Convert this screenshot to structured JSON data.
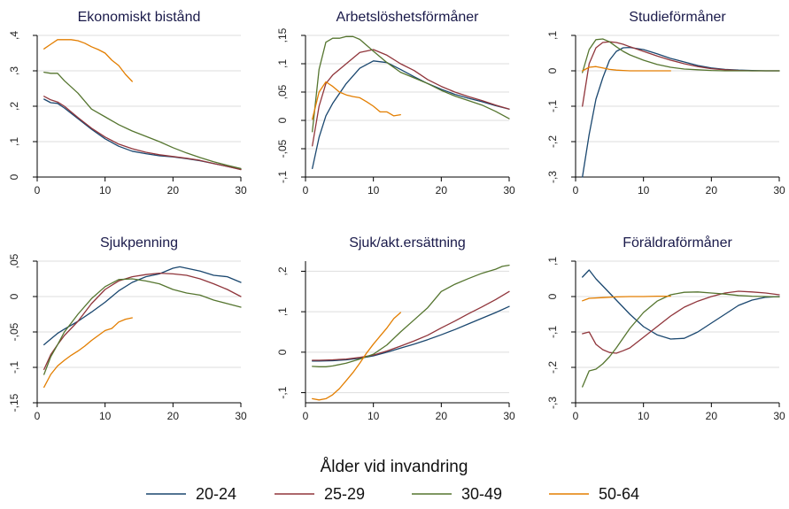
{
  "colors": {
    "20-24": "#1a476f",
    "25-29": "#90353b",
    "30-49": "#55752f",
    "50-64": "#e37e00"
  },
  "legend": {
    "title": "Ålder vid invandring",
    "items": [
      "20-24",
      "25-29",
      "30-49",
      "50-64"
    ]
  },
  "chart_data": [
    {
      "type": "line",
      "title": "Ekonomiskt bistånd",
      "xlim": [
        0,
        30
      ],
      "ylim": [
        0,
        0.4
      ],
      "xticks": [
        0,
        10,
        20,
        30
      ],
      "xtick_labels": [
        "0",
        "10",
        "20",
        "30"
      ],
      "yticks": [
        0,
        0.1,
        0.2,
        0.3,
        0.4
      ],
      "ytick_labels": [
        "0",
        ",1",
        ",2",
        ",3",
        ",4"
      ],
      "grid": true,
      "series": [
        {
          "name": "20-24",
          "x": [
            1,
            2,
            3,
            4,
            6,
            8,
            10,
            12,
            14,
            16,
            18,
            20,
            22,
            24,
            26,
            28,
            30
          ],
          "y": [
            0.22,
            0.21,
            0.208,
            0.195,
            0.165,
            0.135,
            0.108,
            0.087,
            0.073,
            0.066,
            0.06,
            0.057,
            0.052,
            0.046,
            0.038,
            0.03,
            0.022
          ]
        },
        {
          "name": "25-29",
          "x": [
            1,
            2,
            3,
            4,
            6,
            8,
            10,
            12,
            14,
            16,
            18,
            20,
            22,
            24,
            26,
            28,
            30
          ],
          "y": [
            0.228,
            0.218,
            0.212,
            0.2,
            0.168,
            0.138,
            0.113,
            0.093,
            0.08,
            0.07,
            0.063,
            0.058,
            0.053,
            0.047,
            0.038,
            0.03,
            0.021
          ]
        },
        {
          "name": "30-49",
          "x": [
            1,
            2,
            3,
            4,
            6,
            8,
            10,
            12,
            14,
            16,
            18,
            20,
            22,
            24,
            26,
            28,
            30
          ],
          "y": [
            0.296,
            0.293,
            0.293,
            0.272,
            0.237,
            0.192,
            0.17,
            0.148,
            0.13,
            0.115,
            0.1,
            0.083,
            0.068,
            0.055,
            0.043,
            0.033,
            0.024
          ]
        },
        {
          "name": "50-64",
          "x": [
            1,
            2,
            3,
            4,
            5,
            6,
            7,
            8,
            9,
            10,
            11,
            12,
            13,
            14
          ],
          "y": [
            0.362,
            0.375,
            0.388,
            0.388,
            0.388,
            0.385,
            0.378,
            0.368,
            0.36,
            0.35,
            0.33,
            0.315,
            0.29,
            0.27
          ]
        }
      ]
    },
    {
      "type": "line",
      "title": "Arbetslöshetsförmåner",
      "xlim": [
        0,
        30
      ],
      "ylim": [
        -0.1,
        0.15
      ],
      "xticks": [
        0,
        10,
        20,
        30
      ],
      "xtick_labels": [
        "0",
        "10",
        "20",
        "30"
      ],
      "yticks": [
        -0.1,
        -0.05,
        0,
        0.05,
        0.1,
        0.15
      ],
      "ytick_labels": [
        "-,1",
        "-,05",
        "0",
        ",05",
        ",1",
        ",15"
      ],
      "grid": true,
      "series": [
        {
          "name": "20-24",
          "x": [
            1,
            2,
            3,
            4,
            6,
            8,
            10,
            12,
            14,
            16,
            18,
            20,
            22,
            24,
            26,
            28,
            30
          ],
          "y": [
            -0.085,
            -0.03,
            0.008,
            0.03,
            0.065,
            0.092,
            0.105,
            0.102,
            0.09,
            0.077,
            0.065,
            0.055,
            0.046,
            0.039,
            0.033,
            0.026,
            0.02
          ]
        },
        {
          "name": "25-29",
          "x": [
            1,
            2,
            3,
            4,
            6,
            8,
            10,
            12,
            14,
            16,
            18,
            20,
            22,
            24,
            26,
            28,
            30
          ],
          "y": [
            -0.045,
            0.025,
            0.065,
            0.08,
            0.1,
            0.12,
            0.125,
            0.115,
            0.1,
            0.088,
            0.072,
            0.06,
            0.05,
            0.042,
            0.035,
            0.027,
            0.02
          ]
        },
        {
          "name": "30-49",
          "x": [
            1,
            2,
            3,
            4,
            5,
            6,
            7,
            8,
            10,
            12,
            14,
            16,
            18,
            20,
            22,
            24,
            26,
            28,
            30
          ],
          "y": [
            -0.02,
            0.09,
            0.138,
            0.145,
            0.145,
            0.148,
            0.148,
            0.143,
            0.122,
            0.102,
            0.085,
            0.075,
            0.065,
            0.053,
            0.043,
            0.035,
            0.027,
            0.016,
            0.003
          ]
        },
        {
          "name": "50-64",
          "x": [
            1,
            2,
            3,
            4,
            5,
            6,
            7,
            8,
            9,
            10,
            11,
            12,
            13,
            14
          ],
          "y": [
            0.002,
            0.05,
            0.068,
            0.06,
            0.05,
            0.045,
            0.042,
            0.04,
            0.033,
            0.025,
            0.015,
            0.015,
            0.008,
            0.01
          ]
        }
      ]
    },
    {
      "type": "line",
      "title": "Studieförmåner",
      "xlim": [
        0,
        30
      ],
      "ylim": [
        -0.3,
        0.1
      ],
      "xticks": [
        0,
        10,
        20,
        30
      ],
      "xtick_labels": [
        "0",
        "10",
        "20",
        "30"
      ],
      "yticks": [
        -0.3,
        -0.2,
        -0.1,
        0,
        0.1
      ],
      "ytick_labels": [
        "-,3",
        "-,2",
        "-,1",
        "0",
        ",1"
      ],
      "grid": true,
      "series": [
        {
          "name": "20-24",
          "x": [
            1,
            2,
            3,
            4,
            5,
            6,
            7,
            8,
            10,
            12,
            14,
            16,
            18,
            20,
            22,
            24,
            26,
            28,
            30
          ],
          "y": [
            -0.3,
            -0.18,
            -0.08,
            -0.02,
            0.03,
            0.055,
            0.065,
            0.066,
            0.06,
            0.048,
            0.035,
            0.025,
            0.015,
            0.008,
            0.004,
            0.002,
            0.001,
            0.0,
            0.0
          ]
        },
        {
          "name": "25-29",
          "x": [
            1,
            2,
            3,
            4,
            5,
            6,
            7,
            8,
            10,
            12,
            14,
            16,
            18,
            20,
            22,
            24,
            26,
            28,
            30
          ],
          "y": [
            -0.1,
            0.02,
            0.065,
            0.08,
            0.082,
            0.08,
            0.075,
            0.068,
            0.055,
            0.042,
            0.03,
            0.02,
            0.012,
            0.006,
            0.003,
            0.001,
            0.0,
            0.0,
            0.0
          ]
        },
        {
          "name": "30-49",
          "x": [
            1,
            2,
            3,
            4,
            5,
            6,
            7,
            8,
            10,
            12,
            14,
            16,
            18,
            20,
            22,
            24,
            26,
            28,
            30
          ],
          "y": [
            -0.005,
            0.06,
            0.088,
            0.09,
            0.082,
            0.068,
            0.055,
            0.045,
            0.03,
            0.018,
            0.01,
            0.005,
            0.003,
            0.001,
            0.0,
            0.0,
            0.0,
            0.0,
            0.0
          ]
        },
        {
          "name": "50-64",
          "x": [
            1,
            2,
            3,
            4,
            5,
            6,
            7,
            8,
            9,
            10,
            11,
            12,
            13,
            14
          ],
          "y": [
            0.0,
            0.01,
            0.012,
            0.008,
            0.004,
            0.002,
            0.001,
            0.0,
            0.0,
            0.0,
            0.0,
            0.0,
            0.0,
            0.0
          ]
        }
      ]
    },
    {
      "type": "line",
      "title": "Sjukpenning",
      "xlim": [
        0,
        30
      ],
      "ylim": [
        -0.15,
        0.05
      ],
      "xticks": [
        0,
        10,
        20,
        30
      ],
      "xtick_labels": [
        "0",
        "10",
        "20",
        "30"
      ],
      "yticks": [
        -0.15,
        -0.1,
        -0.05,
        0,
        0.05
      ],
      "ytick_labels": [
        "-,15",
        "-,1",
        "-,05",
        "0",
        ",05"
      ],
      "grid": true,
      "series": [
        {
          "name": "20-24",
          "x": [
            1,
            2,
            3,
            4,
            6,
            8,
            10,
            12,
            14,
            16,
            18,
            20,
            21,
            22,
            24,
            26,
            28,
            30
          ],
          "y": [
            -0.068,
            -0.06,
            -0.052,
            -0.046,
            -0.035,
            -0.022,
            -0.008,
            0.008,
            0.02,
            0.028,
            0.032,
            0.04,
            0.042,
            0.04,
            0.036,
            0.03,
            0.028,
            0.02
          ]
        },
        {
          "name": "25-29",
          "x": [
            1,
            2,
            3,
            4,
            6,
            8,
            10,
            12,
            14,
            16,
            18,
            20,
            22,
            24,
            26,
            28,
            30
          ],
          "y": [
            -0.103,
            -0.082,
            -0.068,
            -0.055,
            -0.035,
            -0.01,
            0.01,
            0.022,
            0.028,
            0.031,
            0.033,
            0.032,
            0.03,
            0.025,
            0.018,
            0.01,
            0.0
          ]
        },
        {
          "name": "30-49",
          "x": [
            1,
            2,
            3,
            4,
            6,
            8,
            10,
            12,
            14,
            16,
            18,
            20,
            22,
            24,
            26,
            28,
            30
          ],
          "y": [
            -0.11,
            -0.085,
            -0.068,
            -0.05,
            -0.025,
            -0.003,
            0.014,
            0.024,
            0.025,
            0.022,
            0.018,
            0.01,
            0.005,
            0.002,
            -0.005,
            -0.01,
            -0.015
          ]
        },
        {
          "name": "50-64",
          "x": [
            1,
            2,
            3,
            4,
            5,
            6,
            7,
            8,
            9,
            10,
            11,
            12,
            13,
            14
          ],
          "y": [
            -0.128,
            -0.11,
            -0.098,
            -0.09,
            -0.083,
            -0.077,
            -0.07,
            -0.062,
            -0.055,
            -0.048,
            -0.045,
            -0.036,
            -0.032,
            -0.03
          ]
        }
      ]
    },
    {
      "type": "line",
      "title": "Sjuk/akt.ersättning",
      "xlim": [
        0,
        30
      ],
      "ylim": [
        -0.125,
        0.225
      ],
      "xticks": [
        0,
        10,
        20,
        30
      ],
      "xtick_labels": [
        "0",
        "10",
        "20",
        "30"
      ],
      "yticks": [
        -0.1,
        0,
        0.1,
        0.2
      ],
      "ytick_labels": [
        "-,1",
        "0",
        ",1",
        ",2"
      ],
      "grid": true,
      "series": [
        {
          "name": "20-24",
          "x": [
            1,
            2,
            4,
            6,
            8,
            10,
            12,
            14,
            16,
            18,
            20,
            22,
            24,
            26,
            28,
            30
          ],
          "y": [
            -0.022,
            -0.022,
            -0.021,
            -0.019,
            -0.015,
            -0.009,
            0.0,
            0.01,
            0.02,
            0.031,
            0.043,
            0.056,
            0.07,
            0.084,
            0.098,
            0.113
          ]
        },
        {
          "name": "25-29",
          "x": [
            1,
            2,
            4,
            6,
            8,
            10,
            12,
            14,
            16,
            18,
            20,
            22,
            24,
            26,
            28,
            30
          ],
          "y": [
            -0.02,
            -0.02,
            -0.019,
            -0.017,
            -0.013,
            -0.007,
            0.003,
            0.015,
            0.028,
            0.042,
            0.06,
            0.077,
            0.095,
            0.112,
            0.13,
            0.15
          ]
        },
        {
          "name": "30-49",
          "x": [
            1,
            2,
            3,
            4,
            6,
            8,
            10,
            12,
            14,
            16,
            18,
            19,
            20,
            22,
            24,
            26,
            28,
            29,
            30
          ],
          "y": [
            -0.035,
            -0.036,
            -0.036,
            -0.034,
            -0.027,
            -0.017,
            -0.005,
            0.018,
            0.05,
            0.08,
            0.11,
            0.13,
            0.15,
            0.168,
            0.182,
            0.195,
            0.205,
            0.212,
            0.215
          ]
        },
        {
          "name": "50-64",
          "x": [
            1,
            2,
            3,
            4,
            5,
            6,
            7,
            8,
            9,
            10,
            11,
            12,
            13,
            14
          ],
          "y": [
            -0.115,
            -0.118,
            -0.115,
            -0.105,
            -0.09,
            -0.07,
            -0.05,
            -0.027,
            -0.002,
            0.02,
            0.04,
            0.06,
            0.083,
            0.098
          ]
        }
      ]
    },
    {
      "type": "line",
      "title": "Föräldraförmåner",
      "xlim": [
        0,
        30
      ],
      "ylim": [
        -0.3,
        0.1
      ],
      "xticks": [
        0,
        10,
        20,
        30
      ],
      "xtick_labels": [
        "0",
        "10",
        "20",
        "30"
      ],
      "yticks": [
        -0.3,
        -0.2,
        -0.1,
        0,
        0.1
      ],
      "ytick_labels": [
        "-,3",
        "-,2",
        "-,1",
        "0",
        ",1"
      ],
      "grid": true,
      "series": [
        {
          "name": "20-24",
          "x": [
            1,
            2,
            3,
            4,
            6,
            8,
            10,
            12,
            14,
            16,
            18,
            20,
            22,
            24,
            26,
            28,
            30
          ],
          "y": [
            0.055,
            0.075,
            0.05,
            0.03,
            -0.01,
            -0.05,
            -0.085,
            -0.108,
            -0.12,
            -0.118,
            -0.1,
            -0.075,
            -0.05,
            -0.025,
            -0.01,
            -0.002,
            0.0
          ]
        },
        {
          "name": "25-29",
          "x": [
            1,
            2,
            3,
            4,
            5,
            6,
            7,
            8,
            10,
            12,
            14,
            16,
            18,
            20,
            22,
            24,
            26,
            28,
            30
          ],
          "y": [
            -0.105,
            -0.1,
            -0.135,
            -0.15,
            -0.158,
            -0.16,
            -0.153,
            -0.145,
            -0.115,
            -0.085,
            -0.055,
            -0.03,
            -0.013,
            0.0,
            0.01,
            0.015,
            0.013,
            0.01,
            0.005
          ]
        },
        {
          "name": "30-49",
          "x": [
            1,
            2,
            3,
            4,
            5,
            6,
            8,
            10,
            12,
            14,
            16,
            18,
            20,
            22,
            24,
            26,
            28,
            30
          ],
          "y": [
            -0.255,
            -0.21,
            -0.205,
            -0.19,
            -0.17,
            -0.145,
            -0.09,
            -0.045,
            -0.013,
            0.005,
            0.012,
            0.013,
            0.01,
            0.007,
            0.003,
            0.001,
            0.0,
            -0.001
          ]
        },
        {
          "name": "50-64",
          "x": [
            1,
            2,
            4,
            6,
            8,
            10,
            12,
            14
          ],
          "y": [
            -0.012,
            -0.005,
            -0.003,
            -0.001,
            0.0,
            0.0,
            0.001,
            0.001
          ]
        }
      ]
    }
  ]
}
